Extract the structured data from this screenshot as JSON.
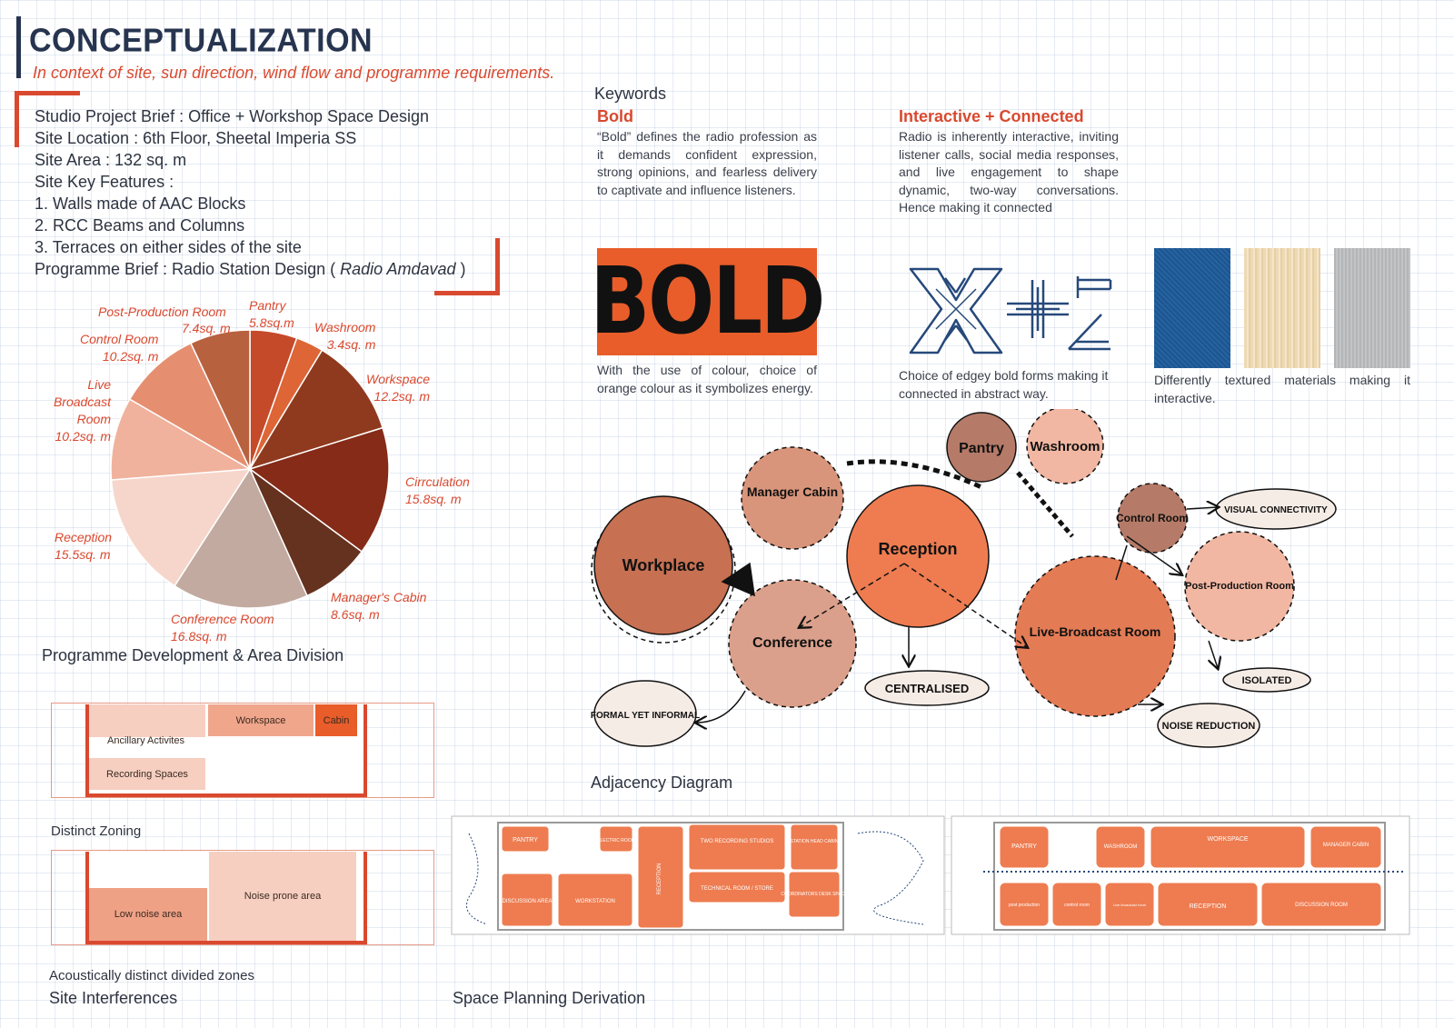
{
  "header": {
    "title": "CONCEPTUALIZATION",
    "subtitle": "In context of site, sun direction, wind flow and programme requirements."
  },
  "brief": {
    "lines": [
      "Studio Project Brief : Office + Workshop Space Design",
      "Site Location : 6th Floor, Sheetal Imperia SS",
      "Site Area : 132 sq. m",
      "Site Key Features :",
      "1. Walls made of AAC Blocks",
      "2. RCC Beams and Columns",
      "3. Terraces on either sides of the site"
    ],
    "programme_prefix": "Programme Brief : Radio Station Design ( ",
    "programme_name": "Radio Amdavad",
    "programme_suffix": " )"
  },
  "chart_data": {
    "type": "pie",
    "title": "Programme Development & Area Division",
    "unit": "sq. m",
    "slices": [
      {
        "name": "Pantry",
        "value": 5.8,
        "label1": "Pantry",
        "label2": "5.8sq.m",
        "color": "#c54a2a"
      },
      {
        "name": "Washroom",
        "value": 3.4,
        "label1": "Washroom",
        "label2": "3.4sq. m",
        "color": "#dd6536"
      },
      {
        "name": "Workspace",
        "value": 12.2,
        "label1": "Workspace",
        "label2": "12.2sq. m",
        "color": "#8f3a1e"
      },
      {
        "name": "Cirrculation",
        "value": 15.8,
        "label1": "Cirrculation",
        "label2": "15.8sq. m",
        "color": "#852b18"
      },
      {
        "name": "Manager's Cabin",
        "value": 8.6,
        "label1": "Manager's Cabin",
        "label2": "8.6sq. m",
        "color": "#65321f"
      },
      {
        "name": "Conference Room",
        "value": 16.8,
        "label1": "Conference Room",
        "label2": "16.8sq. m",
        "color": "#c2aaa0"
      },
      {
        "name": "Reception",
        "value": 15.5,
        "label1": "Reception",
        "label2": "15.5sq. m",
        "color": "#f6d6cb"
      },
      {
        "name": "Live Broadcast Room",
        "value": 10.2,
        "label1": "Live Broadcast Room",
        "label2": "10.2sq. m",
        "color": "#f0b29d"
      },
      {
        "name": "Control Room",
        "value": 10.2,
        "label1": "Control Room",
        "label2": "10.2sq. m",
        "color": "#e58f70"
      },
      {
        "name": "Post-Production Room",
        "value": 7.4,
        "label1": "Post-Production Room",
        "label2": "7.4sq. m",
        "color": "#b8613f"
      }
    ]
  },
  "keywords": {
    "heading": "Keywords",
    "bold": {
      "title": "Bold",
      "text": "“Bold” defines the radio profession as it demands confident expression, strong opinions, and fearless delivery to captivate and influence listeners.",
      "box_text": "BOLD",
      "caption": "With the use of colour, choice of orange colour as it symbolizes energy."
    },
    "interactive": {
      "title": "Interactive + Connected",
      "text": "Radio is inherently interactive, inviting listener calls, social media responses, and live engagement to shape dynamic, two-way conversations. Hence making it connected",
      "forms_caption": "Choice of edgey bold forms making it connected in abstract way.",
      "materials_caption": "Differently textured materials making it interactive.",
      "materials": [
        "#1f5a93",
        "#efdcb8",
        "#b9bbbd"
      ]
    }
  },
  "adjacency": {
    "title": "Adjacency Diagram",
    "bubbles": {
      "workplace": "Workplace",
      "manager": "Manager Cabin",
      "pantry": "Pantry",
      "washroom": "Washroom",
      "reception": "Reception",
      "conference": "Conference",
      "control": "Control Room",
      "post": "Post-Production Room",
      "live": "Live-Broadcast Room"
    },
    "tags": {
      "formal": "FORMAL YET INFORMAL",
      "centralised": "CENTRALISED",
      "visual": "VISUAL CONNECTIVITY",
      "isolated": "ISOLATED",
      "noise": "NOISE REDUCTION"
    }
  },
  "zoning": {
    "labels": {
      "workspace": "Workspace",
      "cabin": "Cabin",
      "ancillary": "Ancillary Activites",
      "recording": "Recording Spaces",
      "low": "Low noise area",
      "noise": "Noise prone area"
    },
    "distinct": "Distinct Zoning",
    "acoustic": "Acoustically distinct divided zones",
    "site": "Site Interferences"
  },
  "space_planning": {
    "title": "Space Planning Derivation",
    "plan1": {
      "pantry": "PANTRY",
      "electric": "ELECTRIC ROOM",
      "recording": "TWO RECORDING STUDIOS",
      "station": "STATION HEAD CABIN",
      "technical": "TECHNICAL ROOM / STORE",
      "coordinator": "COORDINATORS DESK SPACE",
      "discussion": "DISCUSSION AREA",
      "workstation": "WORKSTATION",
      "reception": "RECEPTION"
    },
    "plan2": {
      "pantry": "PANTRY",
      "washroom": "WASHROOM",
      "workspace": "WORKSPACE",
      "manager": "MANAGER CABIN",
      "post": "post production",
      "control": "control room",
      "live": "Live broadcast room",
      "reception": "RECEPTION",
      "discussion": "DISCUSSION ROOM"
    }
  }
}
